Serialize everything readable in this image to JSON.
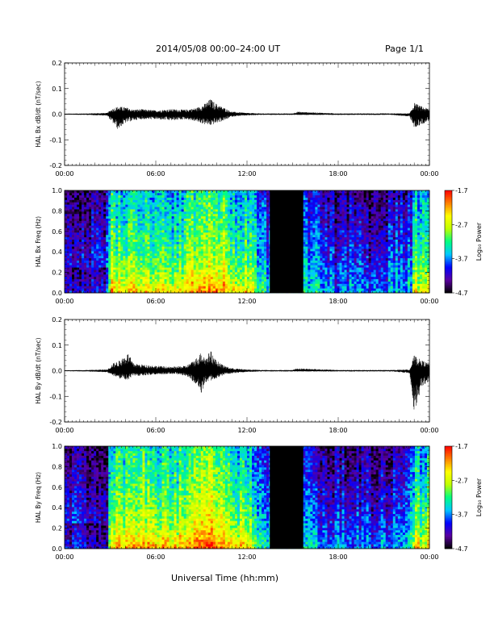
{
  "header": {
    "title": "2014/05/08  00:00–24:00 UT",
    "page": "Page 1/1"
  },
  "xlabel": "Universal Time (hh:mm)",
  "colors": {
    "background": "#ffffff",
    "trace": "#000000",
    "data_gap": "#000000",
    "colorscale": [
      "#000000",
      "#5a00a0",
      "#0000ff",
      "#00c8ff",
      "#00ff80",
      "#c0ff00",
      "#ffff00",
      "#ff8000",
      "#ff0000"
    ]
  },
  "chart_data": [
    {
      "type": "line",
      "ylabel": "HAL Bx dB/dt (nT/sec)",
      "xlim": [
        0,
        24
      ],
      "ylim": [
        -0.2,
        0.2
      ],
      "xticks": [
        "00:00",
        "06:00",
        "12:00",
        "18:00",
        "00:00"
      ],
      "yticks": [
        "0.2",
        "0.1",
        "0.0",
        "-0.1",
        "-0.2"
      ],
      "envelope": {
        "x": [
          0,
          1.5,
          2.8,
          3.1,
          3.5,
          4.0,
          4.5,
          5.0,
          6.0,
          7.0,
          8.0,
          8.7,
          9.2,
          9.6,
          10.0,
          10.5,
          11.0,
          12.0,
          13.0,
          15.0,
          15.3,
          18.0,
          21.5,
          22.7,
          23.0,
          23.5,
          24.0
        ],
        "upper": [
          0.002,
          0.003,
          0.005,
          0.02,
          0.03,
          0.028,
          0.018,
          0.02,
          0.015,
          0.02,
          0.018,
          0.025,
          0.04,
          0.06,
          0.04,
          0.025,
          0.01,
          0.005,
          0.003,
          0.003,
          0.01,
          0.003,
          0.003,
          0.003,
          0.045,
          0.03,
          0.02
        ],
        "lower": [
          -0.002,
          -0.003,
          -0.006,
          -0.03,
          -0.06,
          -0.035,
          -0.025,
          -0.02,
          -0.02,
          -0.025,
          -0.02,
          -0.03,
          -0.04,
          -0.045,
          -0.035,
          -0.025,
          -0.01,
          -0.005,
          -0.003,
          -0.003,
          -0.003,
          -0.003,
          -0.003,
          -0.01,
          -0.055,
          -0.04,
          -0.025
        ]
      }
    },
    {
      "type": "heatmap",
      "ylabel": "HAL Bx Freq (Hz)",
      "xlim": [
        0,
        24
      ],
      "ylim": [
        0,
        1.0
      ],
      "xticks": [
        "00:00",
        "06:00",
        "12:00",
        "18:00",
        "00:00"
      ],
      "yticks": [
        "1.0",
        "0.8",
        "0.6",
        "0.4",
        "0.2",
        "0.0"
      ],
      "colorbar": {
        "label": "Log₁₀ Power",
        "range": [
          -4.7,
          -1.7
        ],
        "ticks": [
          "-1.7",
          "-2.7",
          "-3.7",
          "-4.7"
        ]
      },
      "data_gap": [
        13.5,
        15.7
      ],
      "activity_profile": {
        "x": [
          0,
          2.9,
          3.0,
          5.0,
          7.0,
          8.0,
          9.0,
          10.0,
          11.0,
          12.0,
          13.4,
          15.8,
          17.0,
          19.0,
          20.0,
          21.0,
          22.0,
          22.8,
          23.0,
          24.0
        ],
        "level": [
          0.25,
          0.3,
          0.6,
          0.62,
          0.55,
          0.6,
          0.72,
          0.68,
          0.6,
          0.55,
          0.4,
          0.4,
          0.3,
          0.28,
          0.25,
          0.3,
          0.35,
          0.4,
          0.55,
          0.55
        ]
      }
    },
    {
      "type": "line",
      "ylabel": "HAL By dB/dt (nT/sec)",
      "xlim": [
        0,
        24
      ],
      "ylim": [
        -0.2,
        0.2
      ],
      "xticks": [
        "00:00",
        "06:00",
        "12:00",
        "18:00",
        "00:00"
      ],
      "yticks": [
        "0.2",
        "0.1",
        "0.0",
        "-0.1",
        "-0.2"
      ],
      "envelope": {
        "x": [
          0,
          1.5,
          2.8,
          3.2,
          3.6,
          4.2,
          4.5,
          5.0,
          6.0,
          7.0,
          8.0,
          8.6,
          9.0,
          9.3,
          9.6,
          10.0,
          10.5,
          11.0,
          12.0,
          13.0,
          15.0,
          15.3,
          18.0,
          21.5,
          22.7,
          23.0,
          23.5,
          24.0
        ],
        "upper": [
          0.002,
          0.003,
          0.005,
          0.03,
          0.04,
          0.07,
          0.03,
          0.025,
          0.02,
          0.015,
          0.02,
          0.045,
          0.075,
          0.05,
          0.08,
          0.04,
          0.02,
          0.01,
          0.005,
          0.003,
          0.003,
          0.01,
          0.003,
          0.003,
          0.005,
          0.06,
          0.04,
          0.03
        ],
        "lower": [
          -0.002,
          -0.003,
          -0.006,
          -0.02,
          -0.03,
          -0.04,
          -0.02,
          -0.02,
          -0.015,
          -0.012,
          -0.02,
          -0.05,
          -0.09,
          -0.05,
          -0.04,
          -0.03,
          -0.015,
          -0.01,
          -0.005,
          -0.003,
          -0.003,
          -0.003,
          -0.003,
          -0.003,
          -0.01,
          -0.17,
          -0.06,
          -0.04
        ]
      }
    },
    {
      "type": "heatmap",
      "ylabel": "HAL By Freq (Hz)",
      "xlim": [
        0,
        24
      ],
      "ylim": [
        0,
        1.0
      ],
      "xticks": [
        "00:00",
        "06:00",
        "12:00",
        "18:00",
        "00:00"
      ],
      "yticks": [
        "1.0",
        "0.8",
        "0.6",
        "0.4",
        "0.2",
        "0.0"
      ],
      "colorbar": {
        "label": "Log₁₀ Power",
        "range": [
          -4.7,
          -1.7
        ],
        "ticks": [
          "-1.7",
          "-2.7",
          "-3.7",
          "-4.7"
        ]
      },
      "data_gap": [
        13.5,
        15.7
      ],
      "activity_profile": {
        "x": [
          0,
          2.9,
          3.0,
          5.0,
          7.0,
          8.0,
          9.0,
          10.0,
          11.0,
          12.0,
          13.4,
          15.8,
          17.0,
          19.0,
          20.0,
          21.0,
          22.0,
          22.8,
          23.0,
          24.0
        ],
        "level": [
          0.25,
          0.28,
          0.62,
          0.65,
          0.58,
          0.65,
          0.78,
          0.72,
          0.62,
          0.55,
          0.4,
          0.42,
          0.32,
          0.28,
          0.25,
          0.3,
          0.35,
          0.4,
          0.55,
          0.55
        ]
      }
    }
  ]
}
